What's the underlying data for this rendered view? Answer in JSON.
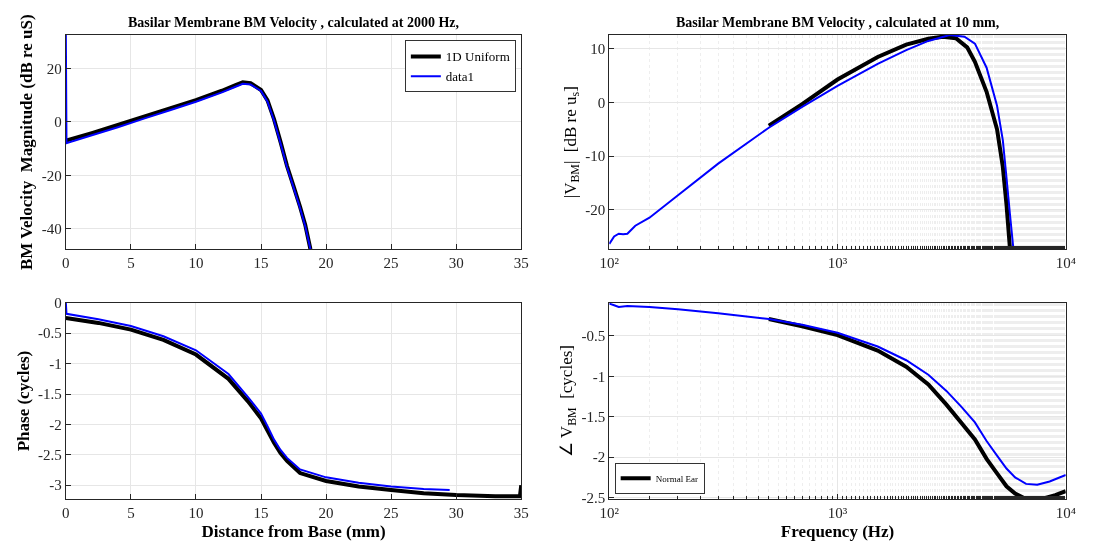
{
  "chart_data": [
    {
      "type": "line",
      "title": "Basilar Membrane BM Velocity , calculated at 2000 Hz,",
      "ylabel": "BM Velocity  Magnitude (dB re uS)",
      "xlim": [
        0,
        35
      ],
      "ylim": [
        -47.6,
        32.4
      ],
      "xticks": [
        0,
        5,
        10,
        15,
        20,
        25,
        30,
        35
      ],
      "yticks": [
        -40,
        -20,
        0,
        20
      ],
      "grid": true,
      "legend": "top right",
      "line_style": "solid",
      "marker": "none",
      "series": [
        {
          "name": "1D Uniform",
          "color": "#000000",
          "x": [
            0,
            2,
            4,
            6,
            8,
            10,
            12,
            13,
            13.6,
            14.2,
            15,
            15.5,
            16,
            16.5,
            17,
            17.5,
            18,
            18.4,
            18.8
          ],
          "values": [
            -7,
            -4.2,
            -1.2,
            1.9,
            5,
            8.1,
            11.6,
            13.6,
            14.8,
            14.4,
            11.9,
            8,
            1,
            -7.5,
            -16.5,
            -24,
            -31.7,
            -38.5,
            -47.6
          ]
        },
        {
          "name": "data1",
          "color": "#0000ff",
          "x": [
            0,
            0.05,
            2,
            4,
            6,
            8,
            10,
            12,
            13,
            13.6,
            14.2,
            15,
            15.5,
            16,
            16.5,
            17,
            17.5,
            18,
            18.4,
            18.8
          ],
          "values": [
            32.4,
            -8,
            -5,
            -2,
            1.2,
            4.3,
            7.5,
            11,
            13,
            14.2,
            13.9,
            11.5,
            7.5,
            0.5,
            -8,
            -17,
            -24.5,
            -32.2,
            -39,
            -47.6
          ]
        }
      ]
    },
    {
      "type": "line",
      "title": "Basilar Membrane BM Velocity , calculated at 10 mm,",
      "ylabel": "|V$_{BM}$|  [dB re u$_{s}$]",
      "log": "x",
      "xlim": [
        100,
        10000
      ],
      "ylim": [
        -27.4,
        12.6
      ],
      "xticks": [
        {
          "value": 100,
          "label": "10²"
        },
        {
          "value": 1000,
          "label": "10³"
        },
        {
          "value": 10000,
          "label": "10⁴"
        }
      ],
      "yticks": [
        -20,
        -10,
        0,
        10
      ],
      "grid": true,
      "line_style": "solid",
      "marker": "none",
      "series": [
        {
          "color": "#000000",
          "x": [
            500,
            700,
            1000,
            1500,
            2000,
            2500,
            2900,
            3300,
            3700,
            4000,
            4500,
            5000,
            5300,
            5500,
            5700
          ],
          "values": [
            -4.3,
            -0.3,
            4.3,
            8.5,
            10.8,
            11.9,
            12.3,
            12,
            10.3,
            7.6,
            2,
            -5,
            -12,
            -19,
            -27.4
          ]
        },
        {
          "color": "#0000ff",
          "x": [
            100,
            105,
            110,
            115,
            120,
            130,
            150,
            200,
            300,
            500,
            700,
            1000,
            1500,
            2000,
            2500,
            3100,
            3600,
            4000,
            4500,
            5000,
            5300,
            5500,
            5700,
            5900
          ],
          "values": [
            -26.4,
            -25,
            -24.5,
            -24.6,
            -24.5,
            -23,
            -21.5,
            -17.3,
            -11.4,
            -4.7,
            -0.8,
            3.1,
            7.2,
            9.8,
            11.5,
            12.6,
            12.3,
            11,
            6.5,
            -0.6,
            -7,
            -14,
            -21,
            -27.4
          ]
        }
      ]
    },
    {
      "type": "line",
      "xlabel": "Distance from Base (mm)",
      "ylabel": "Phase (cycles)",
      "xlim": [
        0,
        35
      ],
      "ylim": [
        -3.23,
        0
      ],
      "xticks": [
        0,
        5,
        10,
        15,
        20,
        25,
        30,
        35
      ],
      "yticks": [
        {
          "value": -3,
          "label": "-3"
        },
        {
          "value": -2.5,
          "label": "-2.5"
        },
        {
          "value": -2,
          "label": "-2"
        },
        {
          "value": -1.5,
          "label": "-1.5"
        },
        {
          "value": -1,
          "label": "-1"
        },
        {
          "value": -0.5,
          "label": "-0.5"
        },
        0
      ],
      "grid": true,
      "line_style": "solid",
      "marker": "none",
      "series": [
        {
          "color": "#000000",
          "x": [
            0,
            2.5,
            5,
            7.5,
            10,
            12.5,
            14,
            15,
            15.5,
            16,
            16.5,
            17,
            18,
            20,
            22.5,
            25,
            27.5,
            30,
            33,
            34.9,
            35
          ],
          "values": [
            -0.25,
            -0.33,
            -0.44,
            -0.61,
            -0.85,
            -1.25,
            -1.62,
            -1.9,
            -2.1,
            -2.3,
            -2.47,
            -2.6,
            -2.8,
            -2.93,
            -3.02,
            -3.08,
            -3.13,
            -3.16,
            -3.18,
            -3.18,
            -3.0
          ]
        },
        {
          "color": "#0000ff",
          "x": [
            0,
            0.05,
            2.5,
            5,
            7.5,
            10,
            12.5,
            14,
            15,
            15.5,
            16,
            16.5,
            17,
            18,
            20,
            22.5,
            25,
            27.5,
            29.5
          ],
          "values": [
            0,
            -0.18,
            -0.27,
            -0.38,
            -0.55,
            -0.78,
            -1.17,
            -1.55,
            -1.82,
            -2.03,
            -2.25,
            -2.42,
            -2.55,
            -2.74,
            -2.87,
            -2.96,
            -3.02,
            -3.06,
            -3.08
          ]
        }
      ]
    },
    {
      "type": "line",
      "xlabel": "Frequency (Hz)",
      "ylabel": "∠ V$_{BM}$  [cycles]",
      "log": "x",
      "xlim": [
        100,
        10000
      ],
      "ylim": [
        -2.52,
        -0.09
      ],
      "xticks": [
        {
          "value": 100,
          "label": "10²"
        },
        {
          "value": 1000,
          "label": "10³"
        },
        {
          "value": 10000,
          "label": "10⁴"
        }
      ],
      "yticks": [
        {
          "value": -2.5,
          "label": "-2.5"
        },
        {
          "value": -2,
          "label": "-2"
        },
        {
          "value": -1.5,
          "label": "-1.5"
        },
        {
          "value": -1,
          "label": "-1"
        },
        {
          "value": -0.5,
          "label": "-0.5"
        }
      ],
      "grid": true,
      "legend": "bottom left",
      "line_style": "solid",
      "marker": "none",
      "series": [
        {
          "name": "Normal Ear",
          "color": "#000000",
          "x": [
            500,
            700,
            1000,
            1500,
            2000,
            2500,
            3000,
            3500,
            4000,
            4500,
            5000,
            5500,
            6000,
            6500,
            7100,
            8000,
            9000,
            10000
          ],
          "values": [
            -0.29,
            -0.38,
            -0.49,
            -0.68,
            -0.88,
            -1.1,
            -1.35,
            -1.58,
            -1.78,
            -2.02,
            -2.2,
            -2.36,
            -2.45,
            -2.5,
            -2.52,
            -2.51,
            -2.47,
            -2.42
          ]
        },
        {
          "color": "#0000ff",
          "x": [
            100,
            105,
            110,
            120,
            150,
            200,
            300,
            500,
            700,
            1000,
            1500,
            2000,
            2500,
            3000,
            3500,
            4000,
            4500,
            5000,
            5500,
            6000,
            6700,
            7500,
            8500,
            10000
          ],
          "values": [
            -0.1,
            -0.12,
            -0.14,
            -0.13,
            -0.14,
            -0.17,
            -0.22,
            -0.29,
            -0.36,
            -0.46,
            -0.63,
            -0.8,
            -0.98,
            -1.18,
            -1.38,
            -1.57,
            -1.8,
            -1.98,
            -2.14,
            -2.25,
            -2.33,
            -2.34,
            -2.3,
            -2.22
          ]
        }
      ]
    }
  ]
}
